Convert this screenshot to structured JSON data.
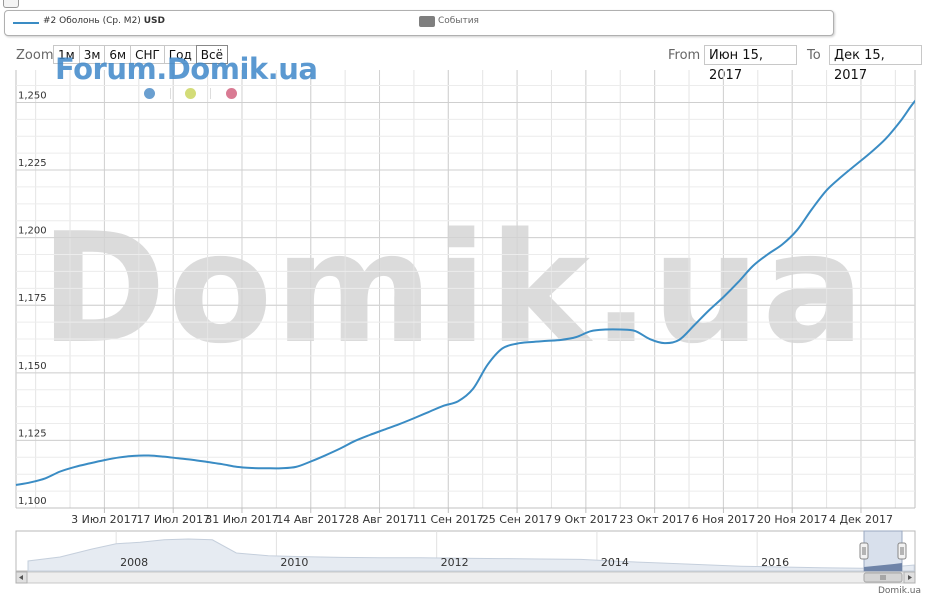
{
  "legend": {
    "series_label": "#2 Оболонь (Ср. М2)",
    "series_unit": "USD",
    "events_label": "События",
    "series_color": "#3a8cc4"
  },
  "zoom": {
    "label": "Zoom",
    "buttons": [
      "1м",
      "3м",
      "6м",
      "СНГ",
      "Год",
      "Всё"
    ],
    "active": "Всё"
  },
  "range": {
    "from_label": "From",
    "from_value": "Июн 15, 2017",
    "to_label": "To",
    "to_value": "Дек 15, 2017"
  },
  "watermarks": {
    "forum": "Forum.Domik.ua",
    "main": "Domik.ua"
  },
  "dot_colors": [
    "#6a9fd0",
    "#d3dc78",
    "#d97a93"
  ],
  "credit": "Domik.ua",
  "chart_data": {
    "type": "line",
    "title": "",
    "xlabel": "",
    "ylabel": "",
    "ylim": [
      1.1,
      1.262
    ],
    "yticks": [
      1.1,
      1.125,
      1.15,
      1.175,
      1.2,
      1.225,
      1.25
    ],
    "ytick_labels": [
      "1,100",
      "1,125",
      "1,150",
      "1,175",
      "1,200",
      "1,225",
      "1,250"
    ],
    "xlim": [
      "2017-06-15",
      "2017-12-15"
    ],
    "xticks": [
      "2017-07-03",
      "2017-07-17",
      "2017-07-31",
      "2017-08-14",
      "2017-08-28",
      "2017-09-11",
      "2017-09-25",
      "2017-10-09",
      "2017-10-23",
      "2017-11-06",
      "2017-11-20",
      "2017-12-04"
    ],
    "xtick_labels": [
      "3 Июл 2017",
      "17 Июл 2017",
      "31 Июл 2017",
      "14 Авг 2017",
      "28 Авг 2017",
      "11 Сен 2017",
      "25 Сен 2017",
      "9 Окт 2017",
      "23 Окт 2017",
      "6 Ноя 2017",
      "20 Ноя 2017",
      "4 Дек 2017"
    ],
    "grid": true,
    "series": [
      {
        "name": "#2 Оболонь (Ср. М2)",
        "color": "#3a8cc4",
        "points": [
          [
            "2017-06-15",
            1.1085
          ],
          [
            "2017-06-18",
            1.1095
          ],
          [
            "2017-06-21",
            1.111
          ],
          [
            "2017-06-24",
            1.1135
          ],
          [
            "2017-06-27",
            1.1152
          ],
          [
            "2017-06-30",
            1.1165
          ],
          [
            "2017-07-03",
            1.1177
          ],
          [
            "2017-07-06",
            1.1187
          ],
          [
            "2017-07-09",
            1.1193
          ],
          [
            "2017-07-12",
            1.1194
          ],
          [
            "2017-07-15",
            1.119
          ],
          [
            "2017-07-18",
            1.1184
          ],
          [
            "2017-07-21",
            1.1178
          ],
          [
            "2017-07-24",
            1.117
          ],
          [
            "2017-07-27",
            1.1162
          ],
          [
            "2017-07-30",
            1.1152
          ],
          [
            "2017-08-02",
            1.1148
          ],
          [
            "2017-08-05",
            1.1147
          ],
          [
            "2017-08-08",
            1.1147
          ],
          [
            "2017-08-11",
            1.1152
          ],
          [
            "2017-08-14",
            1.1172
          ],
          [
            "2017-08-17",
            1.1195
          ],
          [
            "2017-08-20",
            1.122
          ],
          [
            "2017-08-23",
            1.1248
          ],
          [
            "2017-08-26",
            1.127
          ],
          [
            "2017-08-29",
            1.129
          ],
          [
            "2017-09-01",
            1.131
          ],
          [
            "2017-09-04",
            1.1332
          ],
          [
            "2017-09-07",
            1.1355
          ],
          [
            "2017-09-10",
            1.1378
          ],
          [
            "2017-09-13",
            1.1395
          ],
          [
            "2017-09-16",
            1.144
          ],
          [
            "2017-09-19",
            1.153
          ],
          [
            "2017-09-22",
            1.159
          ],
          [
            "2017-09-25",
            1.1608
          ],
          [
            "2017-09-28",
            1.1614
          ],
          [
            "2017-10-01",
            1.1618
          ],
          [
            "2017-10-04",
            1.1622
          ],
          [
            "2017-10-07",
            1.1632
          ],
          [
            "2017-10-10",
            1.1654
          ],
          [
            "2017-10-13",
            1.166
          ],
          [
            "2017-10-16",
            1.166
          ],
          [
            "2017-10-19",
            1.1655
          ],
          [
            "2017-10-22",
            1.1625
          ],
          [
            "2017-10-25",
            1.161
          ],
          [
            "2017-10-28",
            1.1622
          ],
          [
            "2017-10-31",
            1.1675
          ],
          [
            "2017-11-03",
            1.173
          ],
          [
            "2017-11-06",
            1.178
          ],
          [
            "2017-11-09",
            1.1835
          ],
          [
            "2017-11-12",
            1.1895
          ],
          [
            "2017-11-15",
            1.1938
          ],
          [
            "2017-11-18",
            1.1975
          ],
          [
            "2017-11-21",
            1.2028
          ],
          [
            "2017-11-24",
            1.2105
          ],
          [
            "2017-11-27",
            1.2175
          ],
          [
            "2017-11-30",
            1.2225
          ],
          [
            "2017-12-03",
            1.227
          ],
          [
            "2017-12-06",
            1.2315
          ],
          [
            "2017-12-09",
            1.2365
          ],
          [
            "2017-12-12",
            1.243
          ],
          [
            "2017-12-15",
            1.2505
          ],
          [
            "2017-12-18",
            1.2555
          ],
          [
            "2017-12-21",
            1.2588
          ],
          [
            "2017-12-24",
            1.261
          ]
        ]
      }
    ],
    "navigator": {
      "year_labels": [
        "2008",
        "2010",
        "2012",
        "2014",
        "2016"
      ],
      "profile": [
        [
          "2006.9",
          0.25
        ],
        [
          "2007.3",
          0.35
        ],
        [
          "2007.7",
          0.55
        ],
        [
          "2008.0",
          0.68
        ],
        [
          "2008.3",
          0.72
        ],
        [
          "2008.6",
          0.78
        ],
        [
          "2008.9",
          0.8
        ],
        [
          "2009.2",
          0.78
        ],
        [
          "2009.5",
          0.45
        ],
        [
          "2009.9",
          0.38
        ],
        [
          "2010.3",
          0.36
        ],
        [
          "2010.8",
          0.34
        ],
        [
          "2011.3",
          0.33
        ],
        [
          "2011.8",
          0.33
        ],
        [
          "2012.3",
          0.32
        ],
        [
          "2012.8",
          0.31
        ],
        [
          "2013.3",
          0.3
        ],
        [
          "2013.8",
          0.29
        ],
        [
          "2014.3",
          0.24
        ],
        [
          "2014.8",
          0.2
        ],
        [
          "2015.3",
          0.16
        ],
        [
          "2015.8",
          0.12
        ],
        [
          "2016.3",
          0.1
        ],
        [
          "2016.8",
          0.08
        ],
        [
          "2017.3",
          0.07
        ],
        [
          "2017.6",
          0.09
        ],
        [
          "2017.96",
          0.15
        ]
      ]
    }
  }
}
